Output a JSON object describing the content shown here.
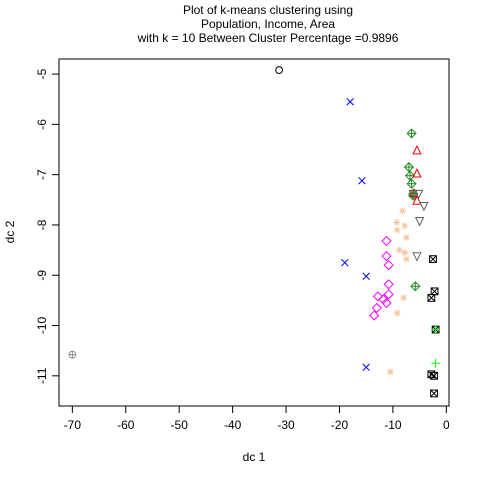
{
  "chart_data": {
    "type": "scatter",
    "title_lines": [
      "Plot of k-means clustering using",
      "Population, Income, Area",
      "with  k = 10 Between Cluster Percentage =0.9896"
    ],
    "xlabel": "dc 1",
    "ylabel": "dc 2",
    "xlim": [
      -72.5,
      0.5
    ],
    "ylim": [
      -11.6,
      -4.7
    ],
    "xticks": [
      -70,
      -60,
      -50,
      -40,
      -30,
      -20,
      -10,
      0
    ],
    "yticks": [
      -5,
      -6,
      -7,
      -8,
      -9,
      -10,
      -11
    ],
    "grid": false,
    "series": [
      {
        "color": "#000000",
        "marker": "circle",
        "points": [
          [
            -31.3,
            -4.92
          ]
        ]
      },
      {
        "color": "#0000ff",
        "marker": "x",
        "points": [
          [
            -18.0,
            -5.55
          ],
          [
            -15.8,
            -7.12
          ],
          [
            -19.0,
            -8.75
          ],
          [
            -15.0,
            -9.02
          ],
          [
            -15.0,
            -10.83
          ]
        ]
      },
      {
        "color": "#ff00ff",
        "marker": "diamond",
        "points": [
          [
            -11.2,
            -8.32
          ],
          [
            -11.2,
            -8.62
          ],
          [
            -10.8,
            -8.8
          ],
          [
            -10.8,
            -9.18
          ],
          [
            -12.8,
            -9.42
          ],
          [
            -11.8,
            -9.48
          ],
          [
            -10.8,
            -9.38
          ],
          [
            -11.2,
            -9.55
          ],
          [
            -13.0,
            -9.65
          ],
          [
            -13.5,
            -9.8
          ]
        ]
      },
      {
        "color": "#f5c39c",
        "marker": "asterisk",
        "points": [
          [
            -8.2,
            -7.72
          ],
          [
            -9.3,
            -7.95
          ],
          [
            -9.2,
            -8.1
          ],
          [
            -7.8,
            -8.02
          ],
          [
            -7.5,
            -8.25
          ],
          [
            -8.8,
            -8.5
          ],
          [
            -7.8,
            -8.55
          ],
          [
            -7.5,
            -8.68
          ],
          [
            -8.0,
            -9.45
          ],
          [
            -9.2,
            -9.75
          ],
          [
            -10.5,
            -10.92
          ]
        ]
      },
      {
        "color": "#228b22",
        "marker": "diamond-plus",
        "points": [
          [
            -6.5,
            -6.18
          ],
          [
            -7.0,
            -6.85
          ],
          [
            -6.8,
            -7.02
          ],
          [
            -6.5,
            -7.18
          ],
          [
            -6.2,
            -7.38
          ],
          [
            -6.2,
            -7.42
          ],
          [
            -5.8,
            -9.22
          ]
        ]
      },
      {
        "color": "#ff0000",
        "marker": "triangle",
        "points": [
          [
            -5.5,
            -6.52
          ],
          [
            -5.5,
            -6.98
          ],
          [
            -6.0,
            -7.38
          ],
          [
            -5.5,
            -7.52
          ]
        ]
      },
      {
        "color": "#606060",
        "marker": "triangle-down",
        "points": [
          [
            -6.2,
            -7.38
          ],
          [
            -5.2,
            -7.38
          ],
          [
            -4.2,
            -7.62
          ],
          [
            -5.0,
            -7.92
          ],
          [
            -5.5,
            -8.62
          ]
        ]
      },
      {
        "color": "#000000",
        "marker": "square-x",
        "points": [
          [
            -2.5,
            -8.68
          ],
          [
            -2.2,
            -9.32
          ],
          [
            -2.8,
            -9.45
          ],
          [
            -2.0,
            -10.08
          ],
          [
            -2.8,
            -10.97
          ],
          [
            -2.3,
            -11.0
          ],
          [
            -2.3,
            -11.35
          ]
        ]
      },
      {
        "color": "#00ff00",
        "marker": "plus",
        "points": [
          [
            -2.0,
            -10.08
          ],
          [
            -2.0,
            -10.75
          ]
        ]
      },
      {
        "color": "#8c8c8c",
        "marker": "circle-plus",
        "points": [
          [
            -70.0,
            -10.58
          ]
        ]
      }
    ]
  }
}
